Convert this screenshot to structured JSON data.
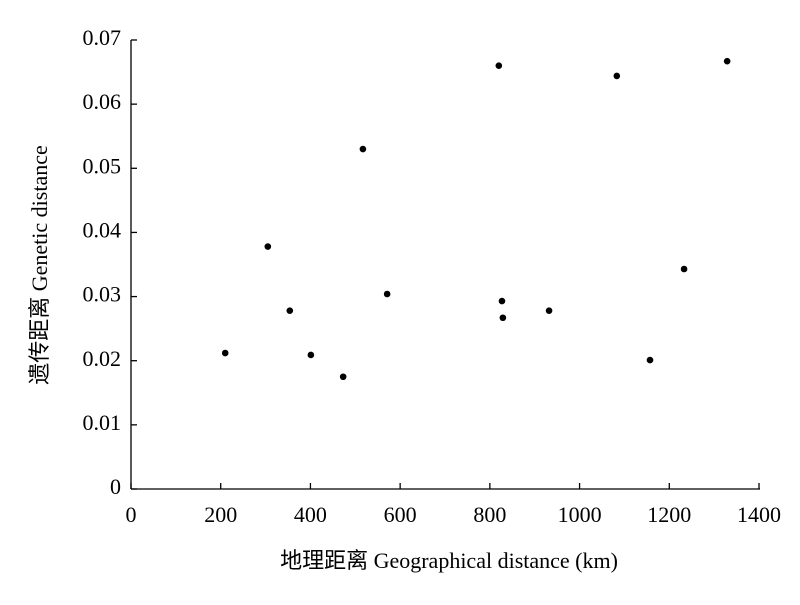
{
  "chart_data": {
    "type": "scatter",
    "x_label": "地理距离 Geographical distance (km)",
    "y_label": "遗传距离 Genetic distance",
    "x": [
      210,
      305,
      354,
      401,
      473,
      517,
      571,
      820,
      827,
      829,
      932,
      1083,
      1157,
      1233,
      1329
    ],
    "values": [
      0.0212,
      0.0378,
      0.0278,
      0.0209,
      0.0175,
      0.053,
      0.0304,
      0.066,
      0.0293,
      0.0267,
      0.0278,
      0.0644,
      0.0201,
      0.0343,
      0.0667
    ],
    "color": "#000000",
    "xlim": [
      0,
      1400
    ],
    "xticks": [
      0,
      200,
      400,
      600,
      800,
      1000,
      1200,
      1400
    ],
    "ylim": [
      0,
      0.07
    ],
    "yticks": [
      0,
      0.01,
      0.02,
      0.03,
      0.04,
      0.05,
      0.06,
      0.07
    ],
    "grid": false
  }
}
